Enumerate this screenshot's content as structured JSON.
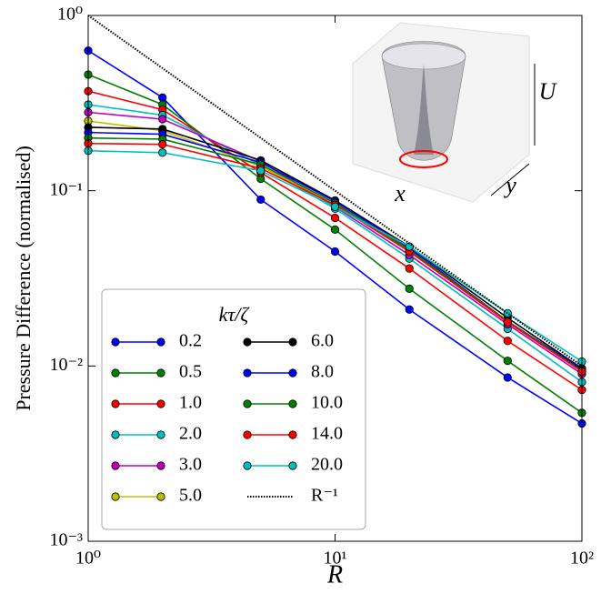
{
  "chart_data": {
    "type": "line",
    "log_x": true,
    "log_y": true,
    "y_label": "Pressure Difference (normalised)",
    "x_label": "R",
    "xlim": [
      1,
      100
    ],
    "ylim": [
      0.001,
      1
    ],
    "xticks": [
      {
        "value": 1,
        "label": "10⁰"
      },
      {
        "value": 10,
        "label": "10¹"
      },
      {
        "value": 100,
        "label": "10²"
      }
    ],
    "yticks": [
      {
        "value": 0.001,
        "label": "10⁻³"
      },
      {
        "value": 0.01,
        "label": "10⁻²"
      },
      {
        "value": 0.1,
        "label": "10⁻¹"
      },
      {
        "value": 1,
        "label": "10⁰"
      }
    ],
    "legend_title": "kτ/ζ",
    "legend": "lower left",
    "inset_labels": [
      "x",
      "y",
      "U"
    ],
    "x": [
      1,
      2,
      5,
      10,
      20,
      50,
      100
    ],
    "series": [
      {
        "name": "0.2",
        "color": "#0000ff",
        "values": [
          0.63,
          0.34,
          0.089,
          0.045,
          0.021,
          0.0086,
          0.0047
        ]
      },
      {
        "name": "0.5",
        "color": "#008000",
        "values": [
          0.46,
          0.31,
          0.117,
          0.06,
          0.0276,
          0.0107,
          0.0054
        ]
      },
      {
        "name": "1.0",
        "color": "#ff0000",
        "values": [
          0.37,
          0.29,
          0.127,
          0.07,
          0.036,
          0.0139,
          0.0073
        ]
      },
      {
        "name": "2.0",
        "color": "#00bfbf",
        "values": [
          0.31,
          0.27,
          0.14,
          0.079,
          0.041,
          0.0163,
          0.0081
        ]
      },
      {
        "name": "3.0",
        "color": "#bf00bf",
        "values": [
          0.28,
          0.256,
          0.147,
          0.081,
          0.043,
          0.0173,
          0.009
        ]
      },
      {
        "name": "5.0",
        "color": "#bfbf00",
        "values": [
          0.25,
          0.22,
          0.138,
          0.083,
          0.045,
          0.0178,
          0.0093
        ]
      },
      {
        "name": "6.0",
        "color": "#000000",
        "values": [
          0.23,
          0.225,
          0.149,
          0.088,
          0.048,
          0.0188,
          0.0097
        ]
      },
      {
        "name": "8.0",
        "color": "#0000ff",
        "values": [
          0.215,
          0.21,
          0.145,
          0.087,
          0.047,
          0.018,
          0.0096
        ]
      },
      {
        "name": "10.0",
        "color": "#008000",
        "values": [
          0.2,
          0.197,
          0.141,
          0.085,
          0.046,
          0.018,
          0.0094
        ]
      },
      {
        "name": "14.0",
        "color": "#ff0000",
        "values": [
          0.186,
          0.184,
          0.134,
          0.083,
          0.045,
          0.0178,
          0.0093
        ]
      },
      {
        "name": "20.0",
        "color": "#00bfbf",
        "values": [
          0.169,
          0.165,
          0.13,
          0.081,
          0.048,
          0.02,
          0.0106
        ]
      },
      {
        "name": "R⁻¹",
        "color": "#000000",
        "dash": "dotted",
        "markers": false,
        "values": [
          1,
          0.5,
          0.2,
          0.1,
          0.05,
          0.02,
          0.01
        ]
      }
    ]
  }
}
